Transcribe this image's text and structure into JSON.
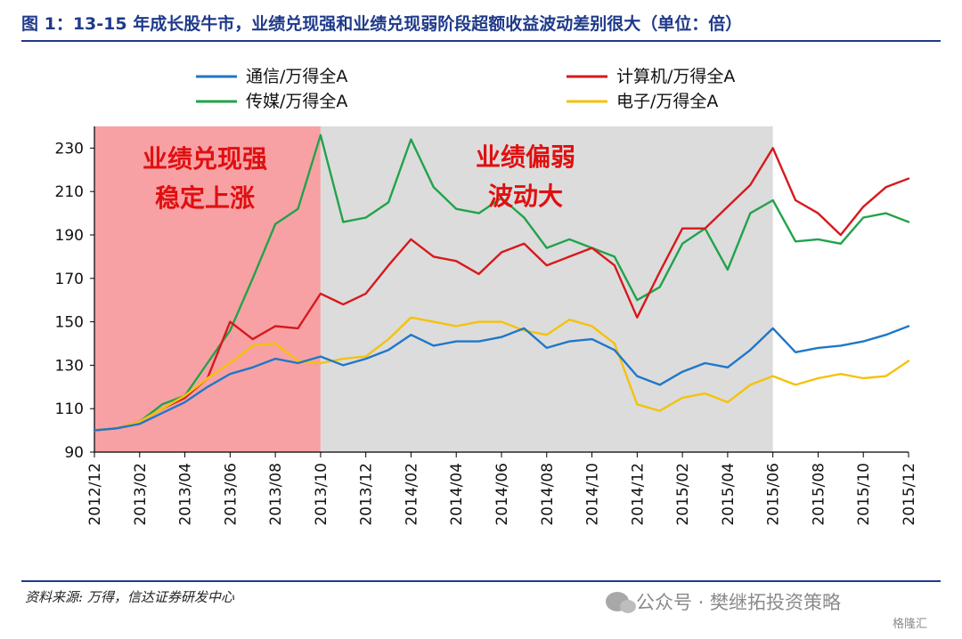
{
  "title": "图 1：13-15 年成长股牛市，业绩兑现强和业绩兑现弱阶段超额收益波动差别很大（单位：倍）",
  "source": "资料来源: 万得，信达证券研发中心",
  "watermark": "公众号 · 樊继拓投资策略",
  "watermark2": "格隆汇",
  "colors": {
    "accent": "#1f3a8a",
    "region1": "#f7a1a5",
    "region2": "#dcdcdc",
    "annotation": "#e01010"
  },
  "chart_data": {
    "type": "line",
    "ylim": [
      90,
      240
    ],
    "yticks": [
      90,
      110,
      130,
      150,
      170,
      190,
      210,
      230
    ],
    "xlim": [
      "2012-12",
      "2015-12"
    ],
    "xticks": [
      "2012/12",
      "2013/02",
      "2013/04",
      "2013/06",
      "2013/08",
      "2013/10",
      "2013/12",
      "2014/02",
      "2014/04",
      "2014/06",
      "2014/08",
      "2014/10",
      "2014/12",
      "2015/02",
      "2015/04",
      "2015/06",
      "2015/08",
      "2015/10",
      "2015/12"
    ],
    "regions": [
      {
        "from": "2012/12",
        "to": "2013/10",
        "label_lines": [
          "业绩兑现强",
          "稳定上涨"
        ],
        "color": "#f7a1a5"
      },
      {
        "from": "2013/10",
        "to": "2015/06",
        "label_lines": [
          "业绩偏弱",
          "波动大"
        ],
        "color": "#dcdcdc"
      }
    ],
    "legend": "top-center",
    "series": [
      {
        "name": "通信/万得全A",
        "color": "#1f77c8",
        "points": [
          [
            "2012/12",
            100
          ],
          [
            "2013/01",
            101
          ],
          [
            "2013/02",
            103
          ],
          [
            "2013/03",
            108
          ],
          [
            "2013/04",
            113
          ],
          [
            "2013/05",
            120
          ],
          [
            "2013/06",
            126
          ],
          [
            "2013/07",
            129
          ],
          [
            "2013/08",
            133
          ],
          [
            "2013/09",
            131
          ],
          [
            "2013/10",
            134
          ],
          [
            "2013/11",
            130
          ],
          [
            "2013/12",
            133
          ],
          [
            "2014/01",
            137
          ],
          [
            "2014/02",
            144
          ],
          [
            "2014/03",
            139
          ],
          [
            "2014/04",
            141
          ],
          [
            "2014/05",
            141
          ],
          [
            "2014/06",
            143
          ],
          [
            "2014/07",
            147
          ],
          [
            "2014/08",
            138
          ],
          [
            "2014/09",
            141
          ],
          [
            "2014/10",
            142
          ],
          [
            "2014/11",
            137
          ],
          [
            "2014/12",
            125
          ],
          [
            "2015/01",
            121
          ],
          [
            "2015/02",
            127
          ],
          [
            "2015/03",
            131
          ],
          [
            "2015/04",
            129
          ],
          [
            "2015/05",
            137
          ],
          [
            "2015/06",
            147
          ],
          [
            "2015/07",
            136
          ],
          [
            "2015/08",
            138
          ],
          [
            "2015/09",
            139
          ],
          [
            "2015/10",
            141
          ],
          [
            "2015/11",
            144
          ],
          [
            "2015/12",
            148
          ]
        ]
      },
      {
        "name": "计算机/万得全A",
        "color": "#d7191c",
        "points": [
          [
            "2012/12",
            100
          ],
          [
            "2013/01",
            101
          ],
          [
            "2013/02",
            104
          ],
          [
            "2013/03",
            110
          ],
          [
            "2013/04",
            115
          ],
          [
            "2013/05",
            124
          ],
          [
            "2013/06",
            150
          ],
          [
            "2013/07",
            142
          ],
          [
            "2013/08",
            148
          ],
          [
            "2013/09",
            147
          ],
          [
            "2013/10",
            163
          ],
          [
            "2013/11",
            158
          ],
          [
            "2013/12",
            163
          ],
          [
            "2014/01",
            176
          ],
          [
            "2014/02",
            188
          ],
          [
            "2014/03",
            180
          ],
          [
            "2014/04",
            178
          ],
          [
            "2014/05",
            172
          ],
          [
            "2014/06",
            182
          ],
          [
            "2014/07",
            186
          ],
          [
            "2014/08",
            176
          ],
          [
            "2014/09",
            180
          ],
          [
            "2014/10",
            184
          ],
          [
            "2014/11",
            176
          ],
          [
            "2014/12",
            152
          ],
          [
            "2015/01",
            173
          ],
          [
            "2015/02",
            193
          ],
          [
            "2015/03",
            193
          ],
          [
            "2015/04",
            203
          ],
          [
            "2015/05",
            213
          ],
          [
            "2015/06",
            230
          ],
          [
            "2015/07",
            206
          ],
          [
            "2015/08",
            200
          ],
          [
            "2015/09",
            190
          ],
          [
            "2015/10",
            203
          ],
          [
            "2015/11",
            212
          ],
          [
            "2015/12",
            216
          ]
        ]
      },
      {
        "name": "传媒/万得全A",
        "color": "#21a34a",
        "points": [
          [
            "2012/12",
            100
          ],
          [
            "2013/01",
            101
          ],
          [
            "2013/02",
            104
          ],
          [
            "2013/03",
            112
          ],
          [
            "2013/04",
            116
          ],
          [
            "2013/05",
            131
          ],
          [
            "2013/06",
            146
          ],
          [
            "2013/07",
            170
          ],
          [
            "2013/08",
            195
          ],
          [
            "2013/09",
            202
          ],
          [
            "2013/10",
            236
          ],
          [
            "2013/11",
            196
          ],
          [
            "2013/12",
            198
          ],
          [
            "2014/01",
            205
          ],
          [
            "2014/02",
            234
          ],
          [
            "2014/03",
            212
          ],
          [
            "2014/04",
            202
          ],
          [
            "2014/05",
            200
          ],
          [
            "2014/06",
            207
          ],
          [
            "2014/07",
            198
          ],
          [
            "2014/08",
            184
          ],
          [
            "2014/09",
            188
          ],
          [
            "2014/10",
            184
          ],
          [
            "2014/11",
            180
          ],
          [
            "2014/12",
            160
          ],
          [
            "2015/01",
            166
          ],
          [
            "2015/02",
            186
          ],
          [
            "2015/03",
            193
          ],
          [
            "2015/04",
            174
          ],
          [
            "2015/05",
            200
          ],
          [
            "2015/06",
            206
          ],
          [
            "2015/07",
            187
          ],
          [
            "2015/08",
            188
          ],
          [
            "2015/09",
            186
          ],
          [
            "2015/10",
            198
          ],
          [
            "2015/11",
            200
          ],
          [
            "2015/12",
            196
          ]
        ]
      },
      {
        "name": "电子/万得全A",
        "color": "#f4c20d",
        "points": [
          [
            "2012/12",
            100
          ],
          [
            "2013/01",
            101
          ],
          [
            "2013/02",
            104
          ],
          [
            "2013/03",
            110
          ],
          [
            "2013/04",
            116
          ],
          [
            "2013/05",
            124
          ],
          [
            "2013/06",
            131
          ],
          [
            "2013/07",
            139
          ],
          [
            "2013/08",
            140
          ],
          [
            "2013/09",
            132
          ],
          [
            "2013/10",
            131
          ],
          [
            "2013/11",
            133
          ],
          [
            "2013/12",
            134
          ],
          [
            "2014/01",
            142
          ],
          [
            "2014/02",
            152
          ],
          [
            "2014/03",
            150
          ],
          [
            "2014/04",
            148
          ],
          [
            "2014/05",
            150
          ],
          [
            "2014/06",
            150
          ],
          [
            "2014/07",
            146
          ],
          [
            "2014/08",
            144
          ],
          [
            "2014/09",
            151
          ],
          [
            "2014/10",
            148
          ],
          [
            "2014/11",
            140
          ],
          [
            "2014/12",
            112
          ],
          [
            "2015/01",
            109
          ],
          [
            "2015/02",
            115
          ],
          [
            "2015/03",
            117
          ],
          [
            "2015/04",
            113
          ],
          [
            "2015/05",
            121
          ],
          [
            "2015/06",
            125
          ],
          [
            "2015/07",
            121
          ],
          [
            "2015/08",
            124
          ],
          [
            "2015/09",
            126
          ],
          [
            "2015/10",
            124
          ],
          [
            "2015/11",
            125
          ],
          [
            "2015/12",
            132
          ]
        ]
      }
    ]
  }
}
